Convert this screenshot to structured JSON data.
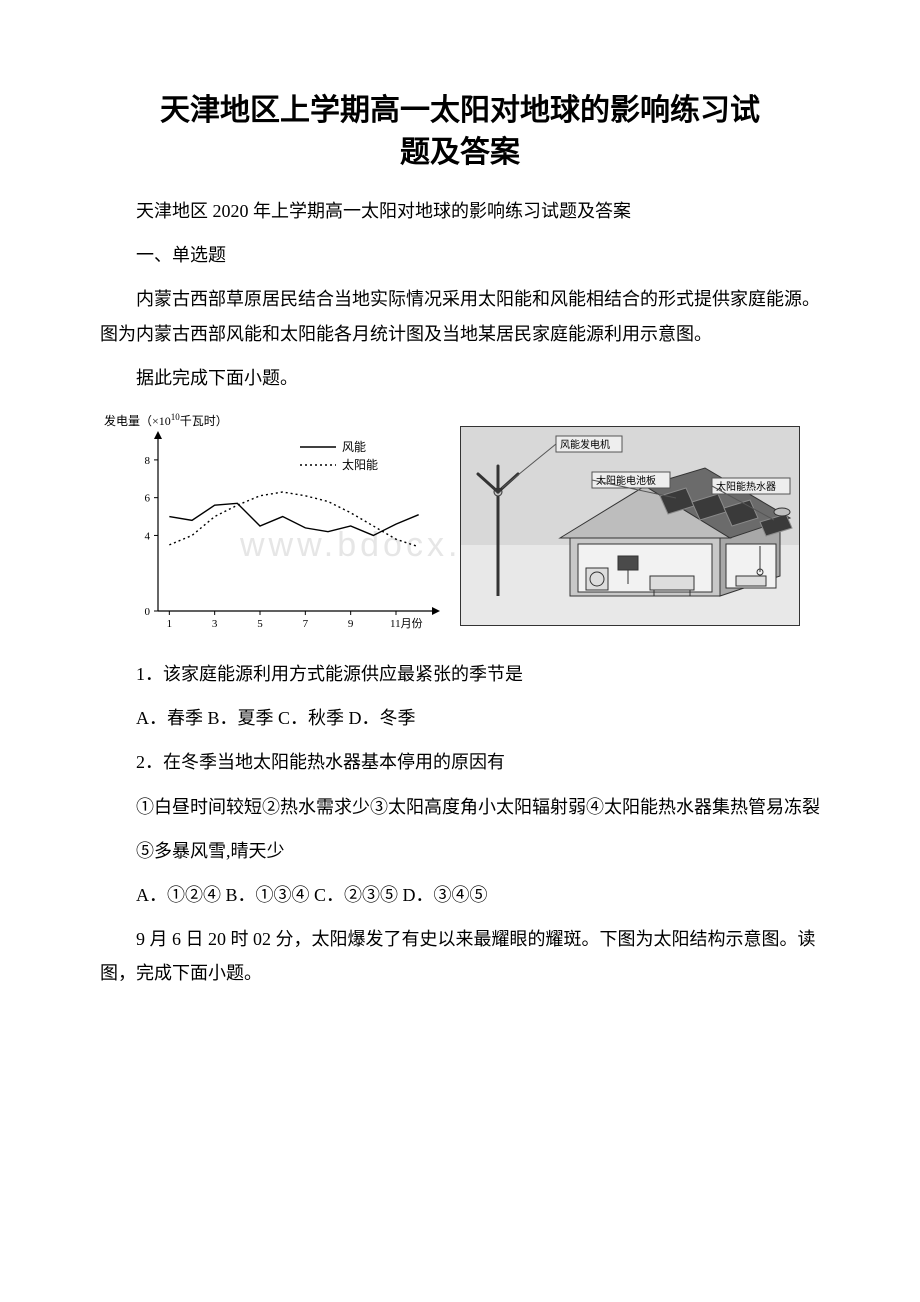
{
  "title_line1": "天津地区上学期高一太阳对地球的影响练习试",
  "title_line2": "题及答案",
  "subtitle": "天津地区 2020 年上学期高一太阳对地球的影响练习试题及答案",
  "section1": "一、单选题",
  "intro1": "内蒙古西部草原居民结合当地实际情况采用太阳能和风能相结合的形式提供家庭能源。图为内蒙古西部风能和太阳能各月统计图及当地某居民家庭能源利用示意图。",
  "intro2": "据此完成下面小题。",
  "chart": {
    "type": "line",
    "y_axis_label": "发电量（×10",
    "y_axis_label_sup": "10",
    "y_axis_label_suffix": "千瓦时）",
    "x_axis_label_suffix": "11月份",
    "x_ticks": [
      1,
      3,
      5,
      7,
      9,
      11
    ],
    "y_ticks": [
      0,
      4,
      6,
      8
    ],
    "ylim": [
      0,
      9
    ],
    "xlim": [
      0.5,
      12.5
    ],
    "legend": {
      "wind": "风能",
      "solar": "太阳能"
    },
    "wind_values": [
      5.0,
      4.8,
      5.6,
      5.7,
      4.5,
      5.0,
      4.4,
      4.2,
      4.5,
      4.0,
      4.6,
      5.1
    ],
    "solar_values": [
      3.5,
      4.0,
      5.0,
      5.6,
      6.1,
      6.3,
      6.1,
      5.8,
      5.2,
      4.5,
      3.8,
      3.4
    ],
    "wind_style": {
      "color": "#000000",
      "dash": "solid",
      "width": 1.4
    },
    "solar_style": {
      "color": "#000000",
      "dash": "dotted",
      "width": 1.4
    },
    "axis_color": "#000000",
    "tick_fontsize": 11,
    "label_fontsize": 12,
    "legend_fontsize": 12,
    "background": "#ffffff"
  },
  "house": {
    "labels": {
      "wind_gen": "风能发电机",
      "solar_panel": "太阳能电池板",
      "solar_heater": "太阳能热水器"
    },
    "colors": {
      "sky": "#d8d8d8",
      "ground": "#e8e8e8",
      "roof_dark": "#6b6b6b",
      "roof_light": "#bdbdbd",
      "panel": "#3a3a3a",
      "panel_line": "#8a8a8a",
      "wall_front": "#c8c8c8",
      "wall_side": "#a8a8a8",
      "window": "#4a4a4a",
      "label_box": "#eeeeee",
      "label_border": "#555555",
      "label_text": "#000000",
      "turbine": "#bfbfbf",
      "outline": "#333333"
    }
  },
  "q1": "1．该家庭能源利用方式能源供应最紧张的季节是",
  "q1_opts": "A．春季 B．夏季 C．秋季 D．冬季",
  "q2": "2．在冬季当地太阳能热水器基本停用的原因有",
  "q2_items": "①白昼时间较短②热水需求少③太阳高度角小太阳辐射弱④太阳能热水器集热管易冻裂",
  "q2_item5": "⑤多暴风雪,晴天少",
  "q2_opts": "A．①②④ B．①③④ C．②③⑤ D．③④⑤",
  "q3_intro": "9 月 6 日 20 时 02 分，太阳爆发了有史以来最耀眼的耀斑。下图为太阳结构示意图。读图，完成下面小题。",
  "watermark": "www.bdocx.c"
}
